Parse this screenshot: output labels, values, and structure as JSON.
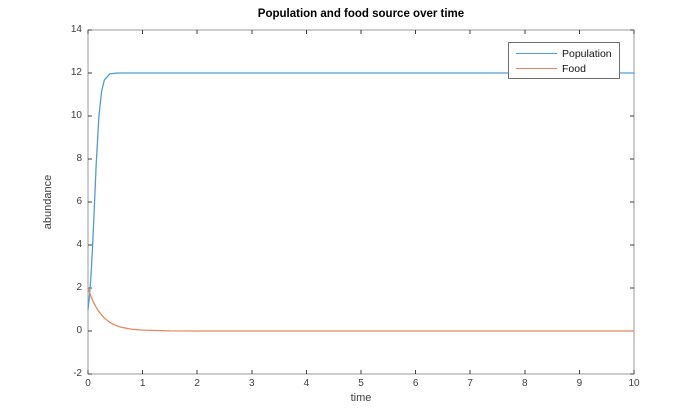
{
  "figure": {
    "background": "#ffffff"
  },
  "chart_data": {
    "type": "line",
    "title": "Population and food source over time",
    "xlabel": "time",
    "ylabel": "abundance",
    "xlim": [
      0,
      10
    ],
    "ylim": [
      -2,
      14
    ],
    "x_ticks": [
      0,
      1,
      2,
      3,
      4,
      5,
      6,
      7,
      8,
      9,
      10
    ],
    "y_ticks": [
      -2,
      0,
      2,
      4,
      6,
      8,
      10,
      12,
      14
    ],
    "grid": false,
    "legend_position": "top-right",
    "axis_color": "#999999",
    "tick_color": "#3c3c3c",
    "label_color": "#3d3d3d",
    "x": [
      0,
      0.02,
      0.05,
      0.08,
      0.1,
      0.15,
      0.2,
      0.25,
      0.3,
      0.4,
      0.5,
      0.6,
      0.8,
      1,
      1.5,
      2,
      2.5,
      3,
      3.5,
      4,
      4.5,
      5,
      5.5,
      6,
      6.5,
      7,
      7.5,
      8,
      8.5,
      9,
      9.5,
      10
    ],
    "series": [
      {
        "name": "Population",
        "color": "#4D9DD4",
        "values": [
          1,
          1.43,
          2.38,
          3.73,
          4.82,
          7.75,
          9.99,
          11.17,
          11.68,
          11.96,
          11.99,
          12,
          12,
          12,
          12,
          12,
          12,
          12,
          12,
          12,
          12,
          12,
          12,
          12,
          12,
          12,
          12,
          12,
          12,
          12,
          12,
          12
        ]
      },
      {
        "name": "Food",
        "color": "#E8875C",
        "values": [
          2,
          1.85,
          1.64,
          1.45,
          1.34,
          1.1,
          0.9,
          0.74,
          0.6,
          0.4,
          0.27,
          0.18,
          0.08,
          0.04,
          0.005,
          0,
          0,
          0,
          0,
          0,
          0,
          0,
          0,
          0,
          0,
          0,
          0,
          0,
          0,
          0,
          0,
          0
        ]
      }
    ]
  }
}
